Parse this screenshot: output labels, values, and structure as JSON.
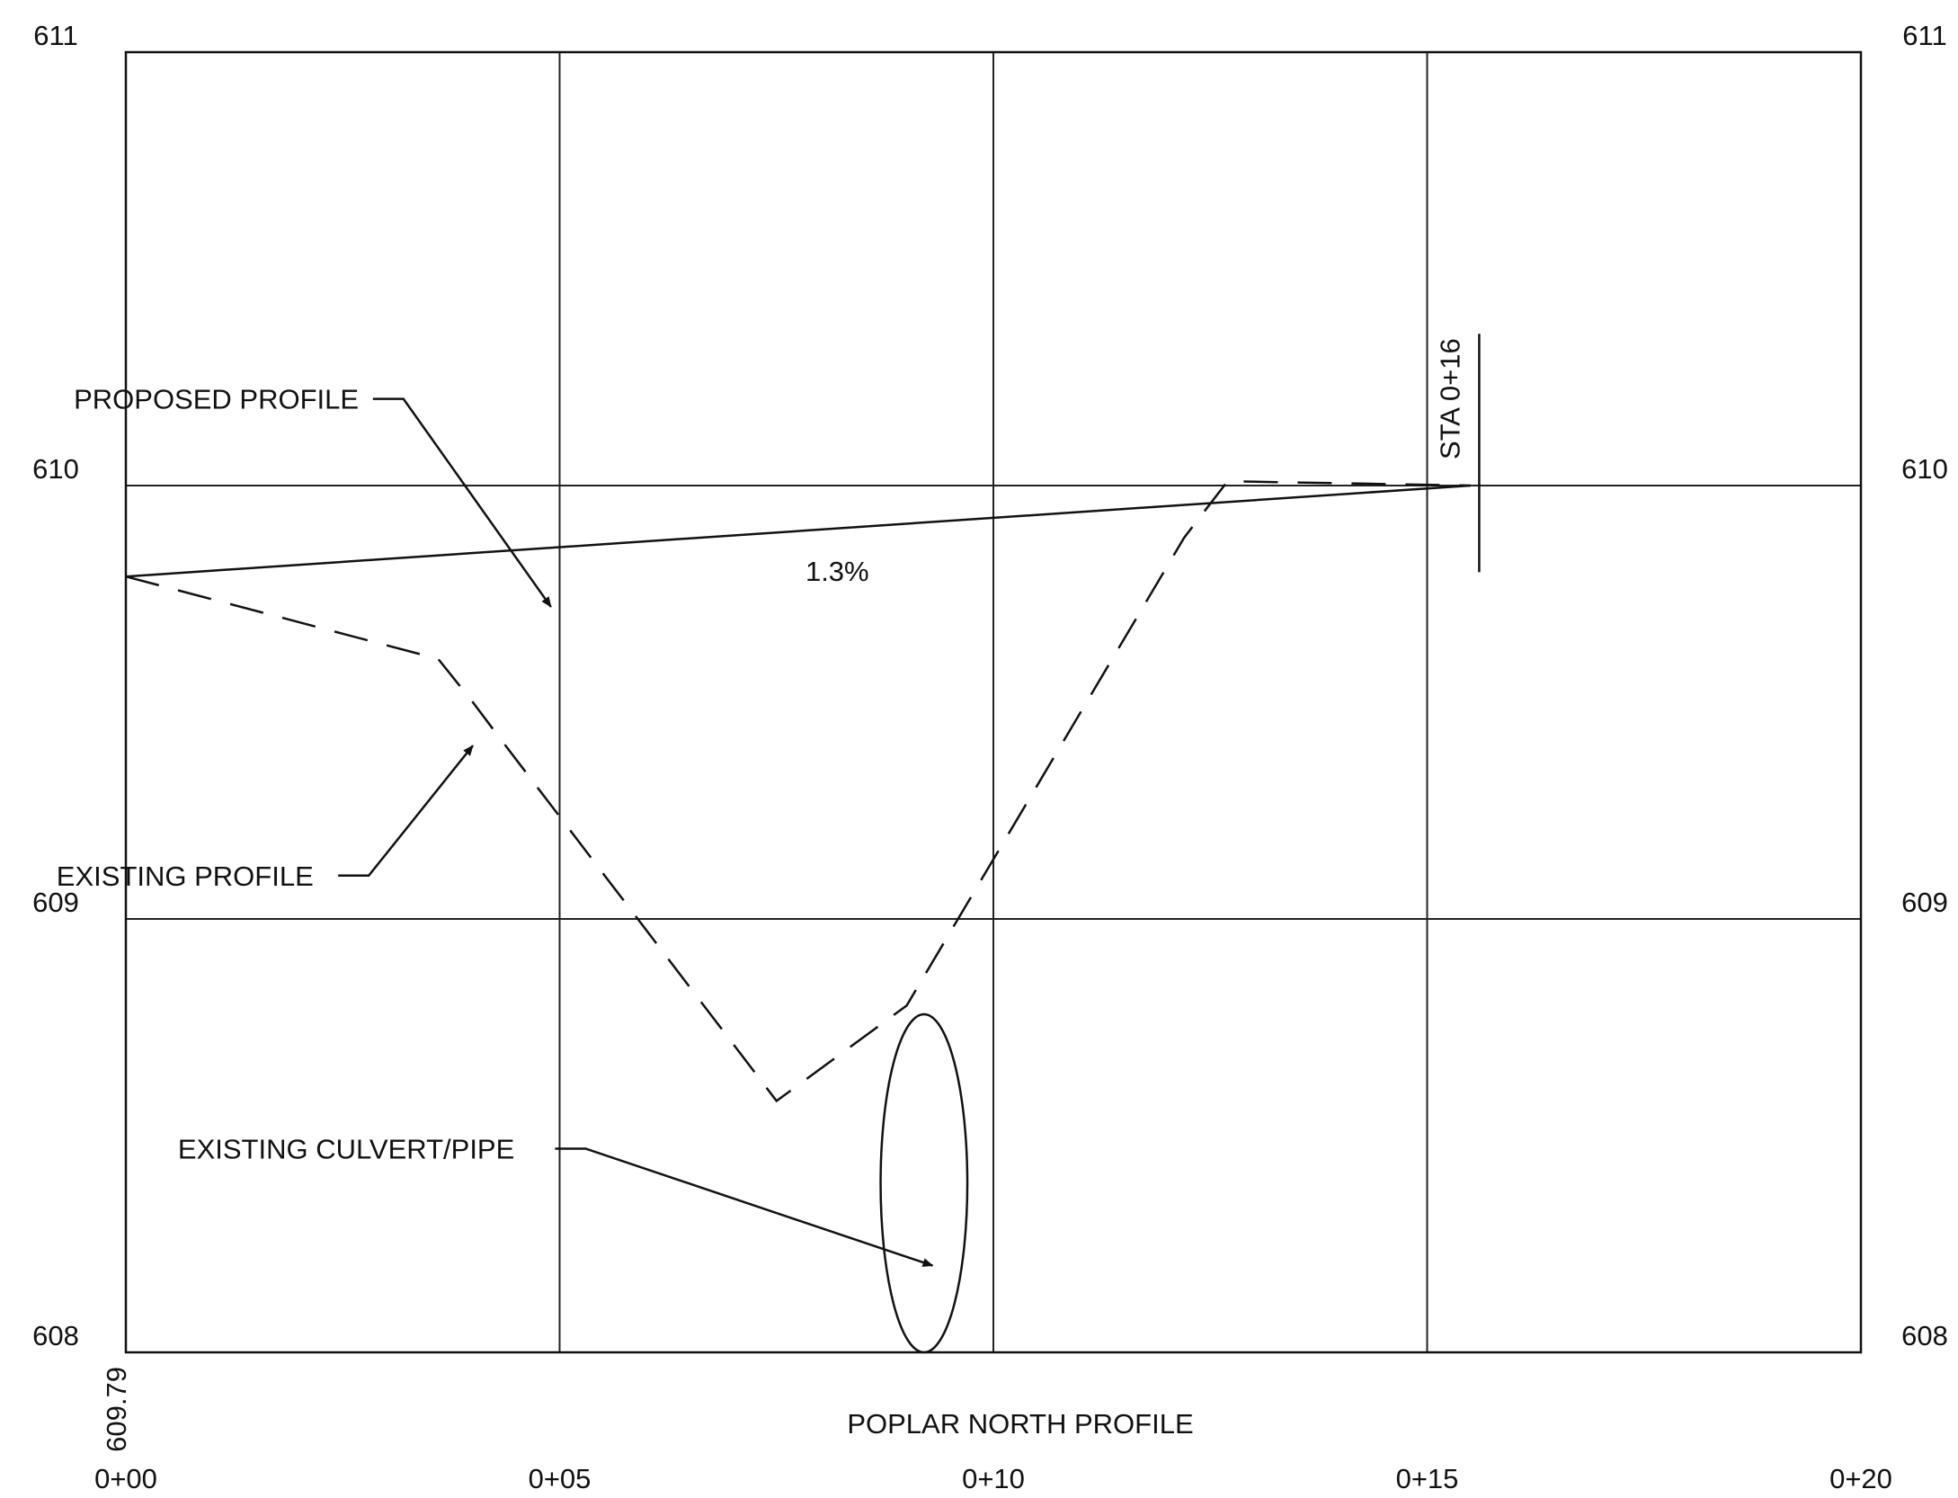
{
  "chart_data": {
    "type": "line",
    "title": "POPLAR NORTH PROFILE",
    "xlabel": "",
    "ylabel": "",
    "x_ticks": [
      "0+00",
      "0+05",
      "0+10",
      "0+15",
      "0+20"
    ],
    "x_tick_values": [
      0,
      5,
      10,
      15,
      20
    ],
    "y_ticks_left": [
      "608",
      "609",
      "610",
      "611"
    ],
    "y_ticks_right": [
      "608",
      "609",
      "610",
      "611"
    ],
    "y_tick_values": [
      608,
      609,
      610,
      611
    ],
    "xlim": [
      0,
      20
    ],
    "ylim": [
      608,
      611
    ],
    "grid": true,
    "series": [
      {
        "name": "PROPOSED PROFILE",
        "style": "solid",
        "x": [
          0,
          15.5
        ],
        "y": [
          609.79,
          610.0
        ]
      },
      {
        "name": "EXISTING PROFILE",
        "style": "dashed",
        "x": [
          0,
          3.6,
          4.0,
          4.3,
          7.5,
          9.0,
          12.2,
          12.7,
          15.5
        ],
        "y": [
          609.79,
          609.6,
          609.5,
          609.42,
          608.58,
          608.8,
          609.88,
          610.01,
          610.0
        ]
      }
    ],
    "culvert": {
      "x": 9.2,
      "y_bottom": 608.0,
      "y_top": 608.78,
      "half_width_x": 0.5
    },
    "station_marker": {
      "x": 15.6,
      "y_bottom": 609.8,
      "y_top": 610.35,
      "label": "STA 0+16"
    },
    "start_elevation_label": "609.79",
    "slope_label": {
      "text": "1.3%",
      "x": 8.2,
      "y": 609.78
    },
    "annotations": [
      {
        "text": "PROPOSED PROFILE",
        "tx": -0.6,
        "ty": 610.2,
        "bx": 3.2,
        "by": 610.2,
        "ax": 4.9,
        "ay": 609.72
      },
      {
        "text": "EXISTING PROFILE",
        "tx": -0.8,
        "ty": 609.1,
        "bx": 2.8,
        "by": 609.1,
        "ax": 4.0,
        "ay": 609.4
      },
      {
        "text": "EXISTING CULVERT/PIPE",
        "tx": 0.6,
        "ty": 608.47,
        "bx": 5.3,
        "by": 608.47,
        "ax": 9.3,
        "ay": 608.2
      }
    ],
    "colors": {
      "ink": "#111111",
      "background": "#ffffff"
    }
  }
}
